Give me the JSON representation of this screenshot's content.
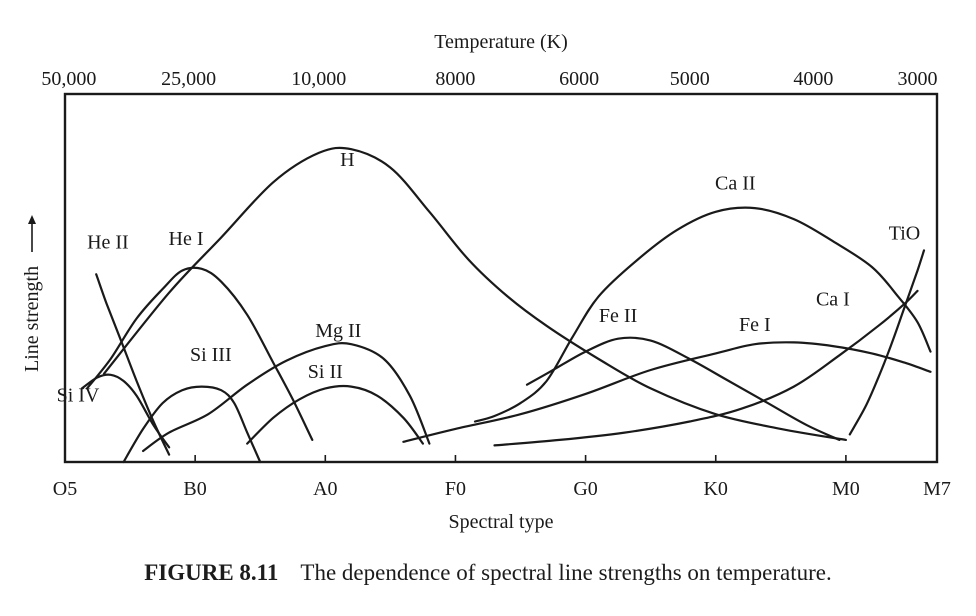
{
  "chart_data": {
    "type": "line",
    "xlabel": "Spectral type",
    "ylabel": "Line strength",
    "top_axis_label": "Temperature (K)",
    "x_ticks": [
      {
        "x": 0,
        "label": "O5"
      },
      {
        "x": 10,
        "label": "B0"
      },
      {
        "x": 20,
        "label": "A0"
      },
      {
        "x": 30,
        "label": "F0"
      },
      {
        "x": 40,
        "label": "G0"
      },
      {
        "x": 50,
        "label": "K0"
      },
      {
        "x": 60,
        "label": "M0"
      },
      {
        "x": 67,
        "label": "M7"
      }
    ],
    "top_ticks": [
      {
        "x": 0.3,
        "label": "50,000"
      },
      {
        "x": 9.5,
        "label": "25,000"
      },
      {
        "x": 19.5,
        "label": "10,000"
      },
      {
        "x": 30,
        "label": "8000"
      },
      {
        "x": 39.5,
        "label": "6000"
      },
      {
        "x": 48,
        "label": "5000"
      },
      {
        "x": 57.5,
        "label": "4000"
      },
      {
        "x": 65.5,
        "label": "3000"
      }
    ],
    "xlim": [
      0,
      67
    ],
    "ylim": [
      0,
      100
    ],
    "series": [
      {
        "name": "H",
        "label_pos": [
          21.7,
          80.5
        ],
        "points": [
          [
            3,
            24
          ],
          [
            8,
            46
          ],
          [
            12,
            61
          ],
          [
            16,
            76
          ],
          [
            19.5,
            84
          ],
          [
            22,
            85
          ],
          [
            25,
            80
          ],
          [
            28,
            68
          ],
          [
            31,
            55
          ],
          [
            34,
            45
          ],
          [
            37,
            37
          ],
          [
            41,
            28
          ],
          [
            45,
            20
          ],
          [
            50,
            13
          ],
          [
            55,
            9
          ],
          [
            60,
            6
          ]
        ]
      },
      {
        "name": "Ca II",
        "label_pos": [
          51.5,
          74
        ],
        "points": [
          [
            31.5,
            11
          ],
          [
            33,
            12.5
          ],
          [
            35,
            16
          ],
          [
            37,
            22
          ],
          [
            39,
            34
          ],
          [
            41,
            45
          ],
          [
            44,
            55
          ],
          [
            47,
            63
          ],
          [
            50,
            68
          ],
          [
            53,
            69
          ],
          [
            56,
            66
          ],
          [
            59,
            60
          ],
          [
            62,
            53
          ],
          [
            64,
            45
          ],
          [
            65.5,
            38
          ],
          [
            66.5,
            30
          ]
        ]
      },
      {
        "name": "He II",
        "label_pos": [
          3.3,
          58
        ],
        "points": [
          [
            2.4,
            51
          ],
          [
            3.2,
            43
          ],
          [
            4.3,
            33
          ],
          [
            5.5,
            22
          ],
          [
            6.8,
            11
          ],
          [
            8,
            2
          ]
        ]
      },
      {
        "name": "He I",
        "label_pos": [
          9.3,
          59
        ],
        "points": [
          [
            1.7,
            20
          ],
          [
            3.5,
            28
          ],
          [
            5.5,
            39
          ],
          [
            7.5,
            47
          ],
          [
            9,
            52
          ],
          [
            10.5,
            52.5
          ],
          [
            12,
            49
          ],
          [
            14,
            40
          ],
          [
            16,
            27
          ],
          [
            17.5,
            17
          ],
          [
            19,
            6
          ]
        ]
      },
      {
        "name": "Si IV",
        "label_pos": [
          1.0,
          16.5
        ],
        "points": [
          [
            1.3,
            20
          ],
          [
            2.5,
            23
          ],
          [
            3.5,
            23.7
          ],
          [
            4.5,
            22
          ],
          [
            5.5,
            18
          ],
          [
            6.8,
            10
          ],
          [
            8,
            4
          ]
        ]
      },
      {
        "name": "Si III",
        "label_pos": [
          11.2,
          27.5
        ],
        "points": [
          [
            4.5,
            0
          ],
          [
            6,
            9
          ],
          [
            7.5,
            16
          ],
          [
            9,
            19.5
          ],
          [
            10.5,
            20.5
          ],
          [
            12,
            19.5
          ],
          [
            13,
            16
          ],
          [
            14,
            8
          ],
          [
            15,
            0
          ]
        ]
      },
      {
        "name": "Mg II",
        "label_pos": [
          21.0,
          34
        ],
        "points": [
          [
            6,
            3
          ],
          [
            8,
            8
          ],
          [
            11,
            13
          ],
          [
            14,
            21
          ],
          [
            17,
            27.5
          ],
          [
            20,
            31.5
          ],
          [
            22,
            32
          ],
          [
            24.5,
            28
          ],
          [
            26.5,
            18
          ],
          [
            28,
            5
          ]
        ]
      },
      {
        "name": "Si II",
        "label_pos": [
          20.0,
          22.8
        ],
        "points": [
          [
            14,
            5
          ],
          [
            16,
            12
          ],
          [
            18,
            17
          ],
          [
            20,
            20
          ],
          [
            22,
            20.5
          ],
          [
            24,
            18
          ],
          [
            26,
            12
          ],
          [
            27.5,
            5
          ]
        ]
      },
      {
        "name": "Fe II",
        "label_pos": [
          42.5,
          38
        ],
        "points": [
          [
            35.5,
            21
          ],
          [
            37.5,
            25
          ],
          [
            40,
            30
          ],
          [
            42.5,
            33.5
          ],
          [
            45,
            33
          ],
          [
            48,
            28
          ],
          [
            51,
            22
          ],
          [
            54,
            16
          ],
          [
            57,
            10
          ],
          [
            59.5,
            6
          ]
        ]
      },
      {
        "name": "Fe I",
        "label_pos": [
          53.0,
          35.6
        ],
        "points": [
          [
            26,
            5.5
          ],
          [
            30,
            9
          ],
          [
            35,
            13
          ],
          [
            40,
            18.5
          ],
          [
            45,
            25
          ],
          [
            50,
            29.5
          ],
          [
            53,
            32
          ],
          [
            56,
            32.5
          ],
          [
            59,
            31.5
          ],
          [
            62,
            29.5
          ],
          [
            64.5,
            27
          ],
          [
            66.5,
            24.5
          ]
        ]
      },
      {
        "name": "Ca I",
        "label_pos": [
          59.0,
          42.5
        ],
        "points": [
          [
            33,
            4.5
          ],
          [
            38,
            6
          ],
          [
            43,
            8
          ],
          [
            48,
            11
          ],
          [
            52,
            14.5
          ],
          [
            56,
            20.5
          ],
          [
            59.5,
            29
          ],
          [
            62.5,
            37
          ],
          [
            64.5,
            43
          ],
          [
            65.5,
            46.5
          ]
        ]
      },
      {
        "name": "TiO",
        "label_pos": [
          64.5,
          60.5
        ],
        "points": [
          [
            60.3,
            7.5
          ],
          [
            61.5,
            15
          ],
          [
            62.5,
            23
          ],
          [
            63.5,
            32
          ],
          [
            64.5,
            42
          ],
          [
            65.5,
            52
          ],
          [
            66,
            57.5
          ]
        ]
      }
    ]
  },
  "caption": {
    "number": "FIGURE 8.11",
    "text": "The dependence of spectral line strengths on temperature."
  }
}
